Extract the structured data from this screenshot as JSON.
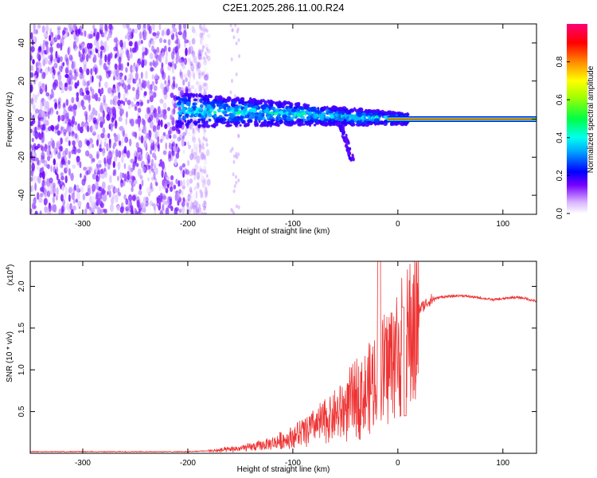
{
  "chart_data": [
    {
      "type": "heatmap",
      "title": "C2E1.2025.286.11.00.R24",
      "xlabel": "Height of straight line (km)",
      "ylabel": "Frequency (Hz)",
      "xlim": [
        -350,
        132
      ],
      "ylim": [
        -50,
        50
      ],
      "xticks": [
        "-300",
        "-200",
        "-100",
        "0",
        "100"
      ],
      "yticks": [
        "-40",
        "-20",
        "0",
        "20",
        "40"
      ],
      "grid": false,
      "colorbar": {
        "label": "Normalized spectral amplitude",
        "range": [
          0,
          1
        ],
        "ticks": [
          "0.0",
          "0.2",
          "0.4",
          "0.6",
          "0.8"
        ],
        "colormap": [
          "#ffffff",
          "#7700ff",
          "#0000ff",
          "#00ffff",
          "#00ff00",
          "#ffff00",
          "#ff0000",
          "#ff0066"
        ]
      },
      "features": {
        "noise_region_x": [
          -350,
          -190
        ],
        "signal_band_x": [
          -210,
          10
        ],
        "signal_band_center_hz": [
          5,
          0
        ],
        "carrier_line_x": [
          10,
          132
        ],
        "carrier_line_hz": 0
      }
    },
    {
      "type": "line",
      "xlabel": "Height of straight line (km)",
      "ylabel": "SNR (10 * v/v)",
      "scale_label": "(x10",
      "scale_exponent": "4",
      "xlim": [
        -350,
        132
      ],
      "ylim": [
        0,
        2.3
      ],
      "xticks": [
        "-300",
        "-200",
        "-100",
        "0",
        "100"
      ],
      "yticks": [
        "0.5",
        "1.0",
        "1.5",
        "2.0"
      ],
      "grid": false,
      "series": [
        {
          "color": "#ee3333",
          "envelope": {
            "x": [
              -350,
              -200,
              -180,
              -160,
              -140,
              -120,
              -100,
              -80,
              -60,
              -50,
              -40,
              -30,
              -20,
              -15,
              -10,
              -5,
              0,
              5,
              10,
              20,
              30,
              40,
              60,
              80,
              90,
              100,
              110,
              120,
              132
            ],
            "y": [
              0.02,
              0.02,
              0.03,
              0.05,
              0.08,
              0.13,
              0.22,
              0.35,
              0.5,
              0.6,
              0.75,
              0.8,
              1.0,
              1.1,
              1.2,
              1.3,
              1.35,
              1.4,
              1.55,
              1.72,
              1.83,
              1.87,
              1.89,
              1.86,
              1.84,
              1.85,
              1.87,
              1.86,
              1.82
            ]
          }
        }
      ]
    }
  ]
}
